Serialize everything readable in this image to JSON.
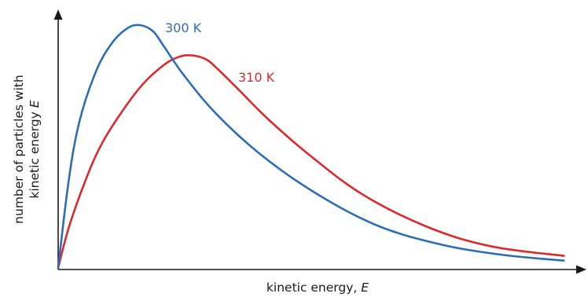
{
  "chart_data": {
    "type": "line",
    "xlabel": {
      "text": "kinetic energy, ",
      "var": "E"
    },
    "ylabel": {
      "line1": "number of particles with",
      "line2_text": "kinetic energy ",
      "line2_var": "E"
    },
    "axis_ticks": "none",
    "grid": false,
    "legend": "labels placed next to each curve peak",
    "series": [
      {
        "name": "300 K",
        "color": "#2f6db3",
        "x": [
          0.0,
          0.02,
          0.04,
          0.07,
          0.1,
          0.13,
          0.155,
          0.18,
          0.2,
          0.24,
          0.3,
          0.38,
          0.48,
          0.6,
          0.72,
          0.84,
          0.96
        ],
        "y": [
          0.0,
          0.36,
          0.6,
          0.8,
          0.92,
          0.985,
          1.0,
          0.975,
          0.915,
          0.79,
          0.635,
          0.475,
          0.32,
          0.18,
          0.1,
          0.055,
          0.03
        ]
      },
      {
        "name": "310 K",
        "color": "#d92b2f",
        "x": [
          0.0,
          0.02,
          0.05,
          0.08,
          0.12,
          0.16,
          0.2,
          0.23,
          0.255,
          0.28,
          0.3,
          0.34,
          0.4,
          0.48,
          0.58,
          0.7,
          0.82,
          0.96
        ],
        "y": [
          0.0,
          0.165,
          0.35,
          0.5,
          0.64,
          0.755,
          0.835,
          0.87,
          0.875,
          0.86,
          0.825,
          0.74,
          0.61,
          0.46,
          0.3,
          0.17,
          0.09,
          0.05
        ]
      }
    ]
  }
}
